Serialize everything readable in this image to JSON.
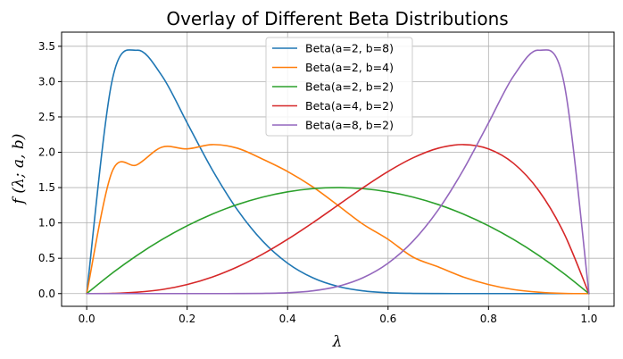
{
  "chart_data": {
    "type": "line",
    "title": "Overlay of Different Beta Distributions",
    "xlabel": "λ",
    "ylabel": "f (λ;  a,  b)",
    "xlim": [
      -0.05,
      1.05
    ],
    "ylim": [
      -0.18,
      3.7
    ],
    "xticks": [
      0.0,
      0.2,
      0.4,
      0.6,
      0.8,
      1.0
    ],
    "xtick_labels": [
      "0.0",
      "0.2",
      "0.4",
      "0.6",
      "0.8",
      "1.0"
    ],
    "yticks": [
      0.0,
      0.5,
      1.0,
      1.5,
      2.0,
      2.5,
      3.0,
      3.5
    ],
    "ytick_labels": [
      "0.0",
      "0.5",
      "1.0",
      "1.5",
      "2.0",
      "2.5",
      "3.0",
      "3.5"
    ],
    "grid": true,
    "legend_position": "top-center",
    "x": [
      0.0,
      0.05,
      0.1,
      0.15,
      0.2,
      0.25,
      0.3,
      0.35,
      0.4,
      0.45,
      0.5,
      0.55,
      0.6,
      0.65,
      0.7,
      0.75,
      0.8,
      0.85,
      0.9,
      0.95,
      1.0
    ],
    "series": [
      {
        "name": "Beta(a=2, b=8)",
        "color": "#1f77b4",
        "values": [
          0.0,
          2.994,
          3.444,
          3.08,
          2.416,
          1.752,
          1.186,
          0.745,
          0.43,
          0.224,
          0.102,
          0.0387,
          0.0118,
          0.0027,
          0.0004,
          3e-05,
          1e-06,
          0.0,
          0.0,
          0.0,
          0.0
        ]
      },
      {
        "name": "Beta(a=2, b=4)",
        "color": "#ff7f0e",
        "values": [
          0.0,
          1.715,
          1.822,
          2.073,
          2.048,
          2.109,
          2.058,
          1.904,
          1.728,
          1.511,
          1.25,
          0.983,
          0.768,
          0.515,
          0.378,
          0.234,
          0.128,
          0.057,
          0.02,
          0.0025,
          0.0
        ]
      },
      {
        "name": "Beta(a=2, b=2)",
        "color": "#2ca02c",
        "values": [
          0.0,
          0.285,
          0.54,
          0.765,
          0.96,
          1.125,
          1.26,
          1.365,
          1.44,
          1.485,
          1.5,
          1.485,
          1.44,
          1.365,
          1.26,
          1.125,
          0.96,
          0.765,
          0.54,
          0.285,
          0.0
        ]
      },
      {
        "name": "Beta(a=4, b=2)",
        "color": "#d62728",
        "values": [
          0.0,
          0.0025,
          0.02,
          0.057,
          0.128,
          0.234,
          0.378,
          0.557,
          0.768,
          1.002,
          1.25,
          1.498,
          1.728,
          1.922,
          2.058,
          2.109,
          2.048,
          1.843,
          1.458,
          0.857,
          0.0
        ]
      },
      {
        "name": "Beta(a=8, b=2)",
        "color": "#9467bd",
        "values": [
          0.0,
          0.0,
          0.0,
          0.0,
          1e-06,
          3e-05,
          0.0004,
          0.0027,
          0.0118,
          0.0387,
          0.102,
          0.224,
          0.43,
          0.745,
          1.186,
          1.752,
          2.416,
          3.08,
          3.444,
          2.994,
          0.0
        ]
      }
    ]
  }
}
